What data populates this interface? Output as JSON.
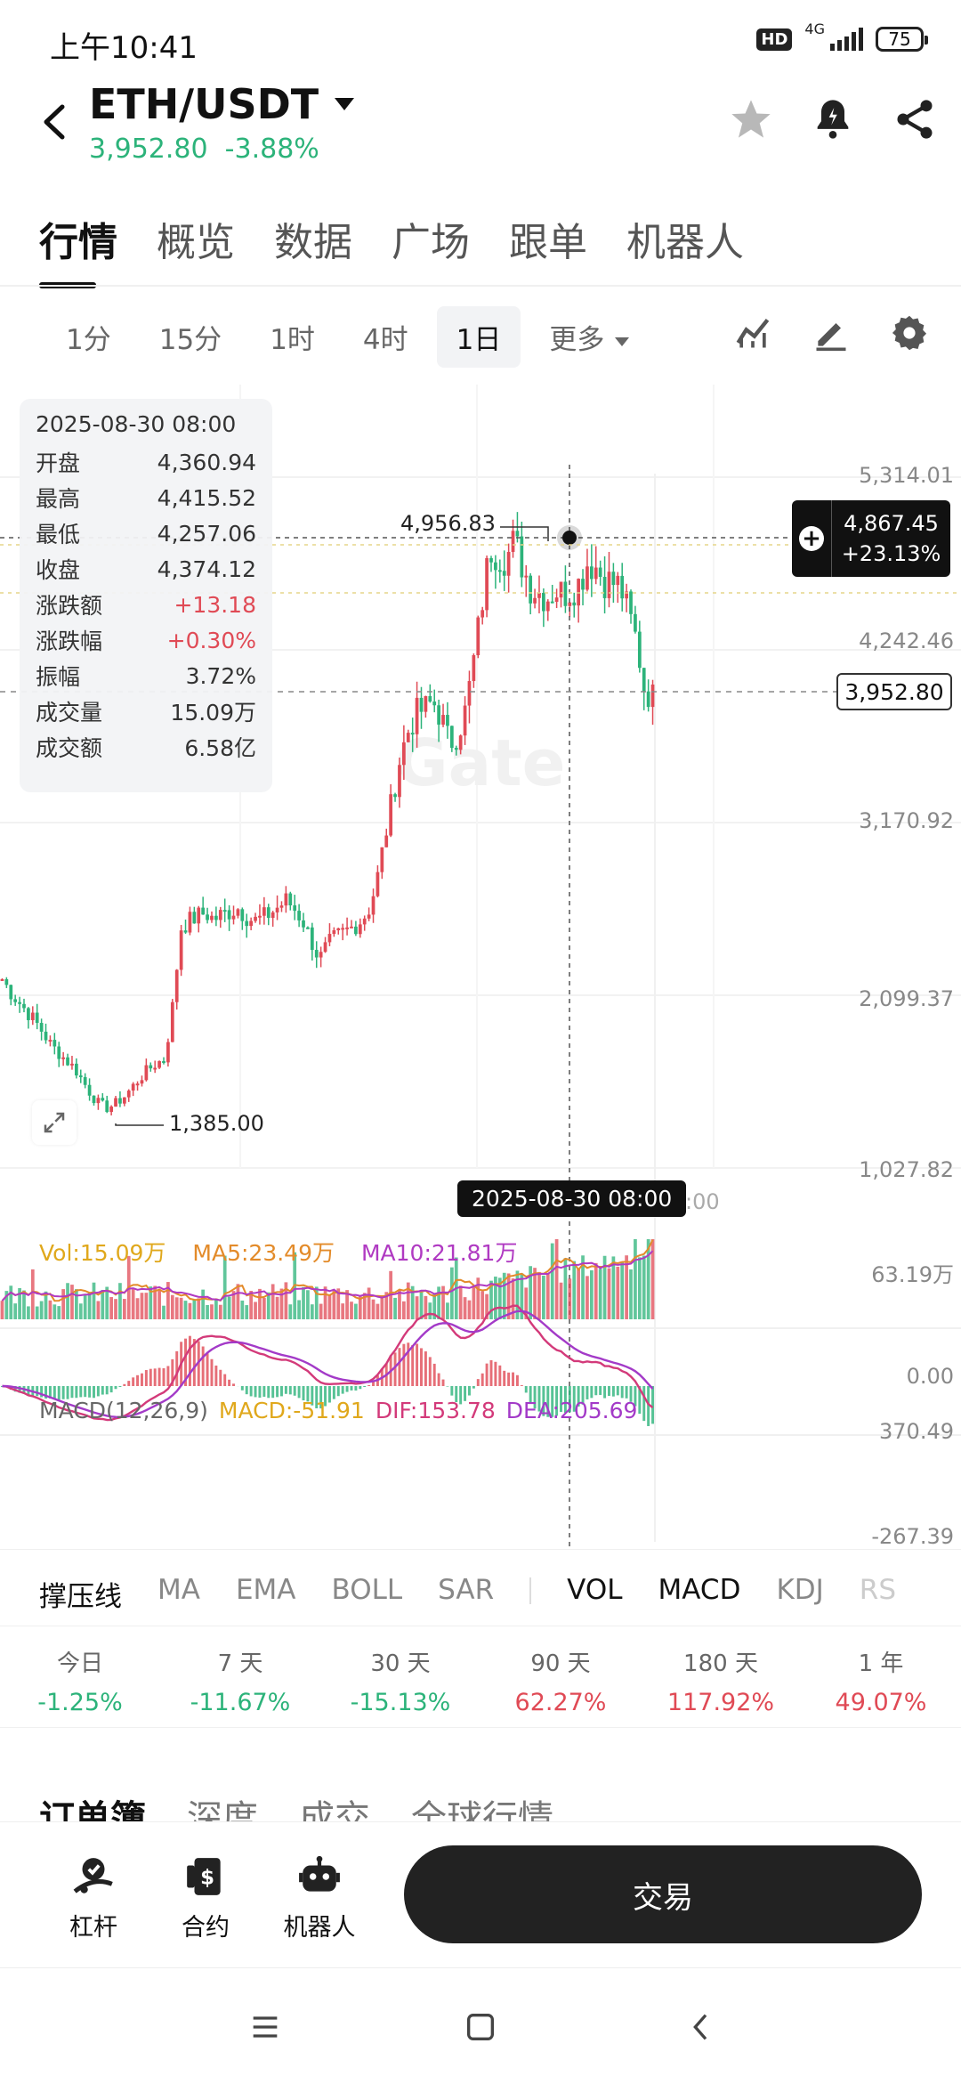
{
  "status_bar": {
    "time": "上午10:41",
    "network": "4G",
    "hd": "HD",
    "battery": "75"
  },
  "header": {
    "title": "ETH/USDT",
    "price": "3,952.80",
    "change": "-3.88%",
    "icons": [
      "star-icon",
      "bell-alert-icon",
      "share-icon"
    ]
  },
  "main_tabs": [
    "行情",
    "概览",
    "数据",
    "广场",
    "跟单",
    "机器人"
  ],
  "intervals": {
    "items": [
      "1分",
      "15分",
      "1时",
      "4时",
      "1日"
    ],
    "active": "1日",
    "more": "更多"
  },
  "ohlc_panel": {
    "date": "2025-08-30 08:00",
    "rows": [
      {
        "label": "开盘",
        "value": "4,360.94"
      },
      {
        "label": "最高",
        "value": "4,415.52"
      },
      {
        "label": "最低",
        "value": "4,257.06"
      },
      {
        "label": "收盘",
        "value": "4,374.12"
      },
      {
        "label": "涨跌额",
        "value": "+13.18"
      },
      {
        "label": "涨跌幅",
        "value": "+0.30%"
      },
      {
        "label": "振幅",
        "value": "3.72%"
      },
      {
        "label": "成交量",
        "value": "15.09万"
      },
      {
        "label": "成交额",
        "value": "6.58亿"
      }
    ]
  },
  "chart_data": {
    "type": "candlestick",
    "y_axis_labels": [
      "5,314.01",
      "4,242.46",
      "3,170.92",
      "2,099.37",
      "1,027.82"
    ],
    "ylim": [
      1027.82,
      5314.01
    ],
    "max_label": "4,956.83",
    "min_label": "1,385.00",
    "crosshair_date": "2025-08-30 08:00",
    "crosshair_price": "4,867.45",
    "crosshair_pct": "+23.13%",
    "last_price": "3,952.80",
    "x_tail_label": ":00",
    "watermark": "Gate",
    "price_path": [
      2200,
      2120,
      2060,
      2000,
      1940,
      1870,
      1790,
      1740,
      1690,
      1640,
      1560,
      1480,
      1420,
      1400,
      1430,
      1470,
      1530,
      1590,
      1640,
      1680,
      1700,
      2050,
      2520,
      2560,
      2590,
      2610,
      2570,
      2600,
      2620,
      2640,
      2590,
      2560,
      2580,
      2610,
      2650,
      2690,
      2630,
      2560,
      2440,
      2320,
      2410,
      2460,
      2490,
      2520,
      2560,
      2620,
      2790,
      3060,
      3330,
      3590,
      3750,
      3850,
      3880,
      3920,
      3820,
      3660,
      3720,
      3870,
      4180,
      4530,
      4870,
      4840,
      4810,
      4920,
      4760,
      4630,
      4600,
      4570,
      4620,
      4590,
      4620,
      4660,
      4790,
      4760,
      4680,
      4660,
      4640,
      4470,
      4300,
      3990,
      3952
    ]
  },
  "volume": {
    "legend_vol": "Vol:15.09万",
    "legend_ma5": "MA5:23.49万",
    "legend_ma10": "MA10:21.81万",
    "axis_max": "63.19万",
    "axis_min": "0.00"
  },
  "macd": {
    "legend_name": "MACD(12,26,9)",
    "legend_macd": "MACD:-51.91",
    "legend_dif": "DIF:153.78",
    "legend_dea": "DEA:205.69",
    "axis_max": "370.49",
    "axis_min": "-267.39"
  },
  "indicator_tabs": [
    "撑压线",
    "MA",
    "EMA",
    "BOLL",
    "SAR",
    "VOL",
    "MACD",
    "KDJ",
    "RS"
  ],
  "performance": [
    {
      "label": "今日",
      "value": "-1.25%",
      "dir": "down"
    },
    {
      "label": "7 天",
      "value": "-11.67%",
      "dir": "down"
    },
    {
      "label": "30 天",
      "value": "-15.13%",
      "dir": "down"
    },
    {
      "label": "90 天",
      "value": "62.27%",
      "dir": "up"
    },
    {
      "label": "180 天",
      "value": "117.92%",
      "dir": "up"
    },
    {
      "label": "1 年",
      "value": "49.07%",
      "dir": "up"
    }
  ],
  "sub_tabs": [
    "订单簿",
    "深度",
    "成交",
    "全球行情"
  ],
  "bottom_bar": {
    "items": [
      {
        "label": "杠杆",
        "icon": "leverage-icon"
      },
      {
        "label": "合约",
        "icon": "contract-icon"
      },
      {
        "label": "机器人",
        "icon": "robot-icon"
      }
    ],
    "trade": "交易"
  },
  "colors": {
    "up": "#e04a55",
    "down": "#2cb37a",
    "accent": "#111111"
  }
}
